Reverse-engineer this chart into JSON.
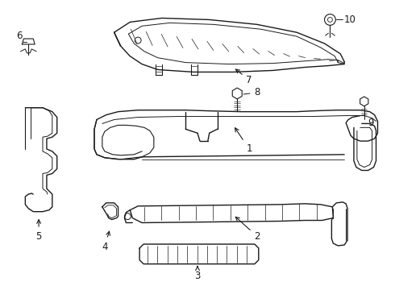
{
  "bg_color": "#ffffff",
  "line_color": "#1a1a1a",
  "line_width": 1.0,
  "fig_width": 4.9,
  "fig_height": 3.6,
  "dpi": 100
}
